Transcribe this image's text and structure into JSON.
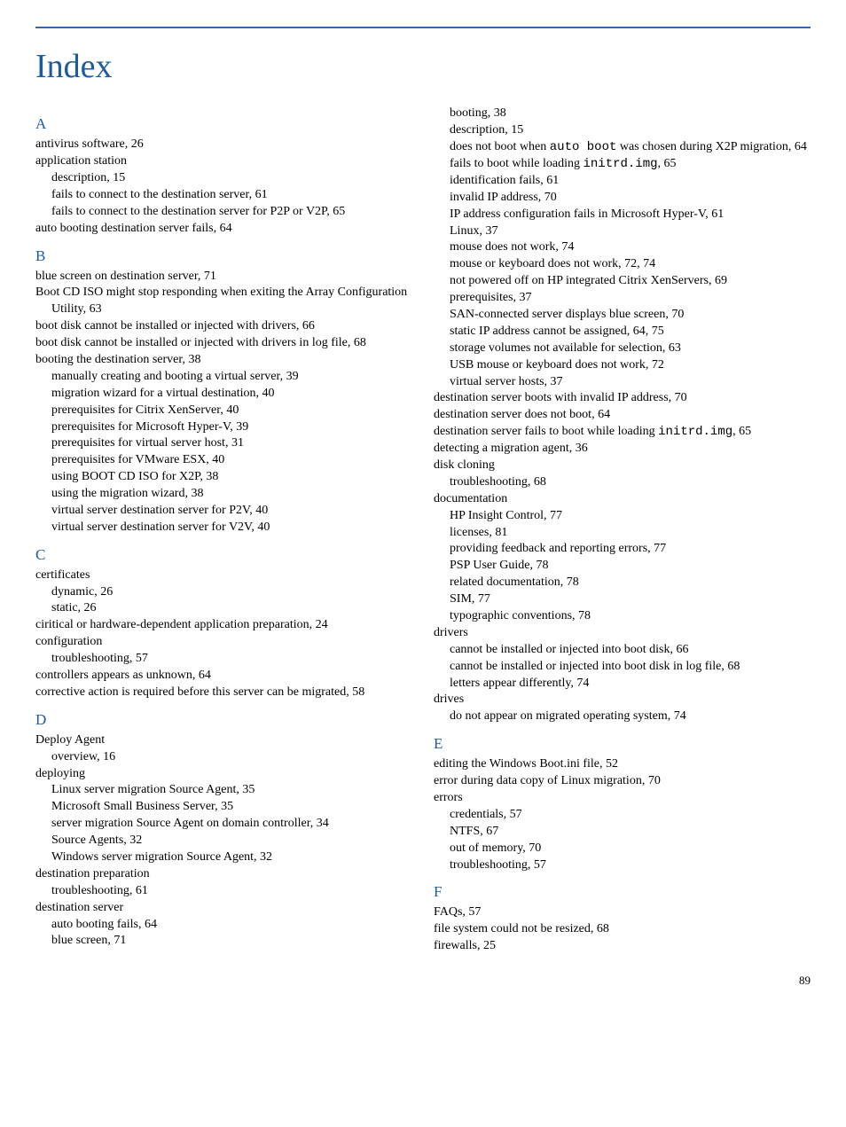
{
  "title": "Index",
  "pageNumber": "89",
  "colors": {
    "heading": "#1e5a9e",
    "rule": "#3366aa",
    "text": "#000000",
    "background": "#ffffff"
  },
  "sections": [
    {
      "letter": "A",
      "entries": [
        {
          "level": 0,
          "text": "antivirus software, 26"
        },
        {
          "level": 0,
          "text": "application station"
        },
        {
          "level": 1,
          "text": "description, 15"
        },
        {
          "level": 1,
          "text": "fails to connect to the destination server, 61"
        },
        {
          "level": 1,
          "wrap": 2,
          "text": "fails to connect to the destination server for P2P or V2P, 65"
        },
        {
          "level": 0,
          "text": "auto booting destination server fails, 64"
        }
      ]
    },
    {
      "letter": "B",
      "entries": [
        {
          "level": 0,
          "text": "blue screen on destination server, 71"
        },
        {
          "level": 0,
          "wrap": 1,
          "text": "Boot CD ISO might stop responding when exiting the Array Configuration Utility, 63"
        },
        {
          "level": 0,
          "text": "boot disk cannot be installed or injected with drivers, 66"
        },
        {
          "level": 0,
          "wrap": 1,
          "text": "boot disk cannot be installed or injected with drivers in log file, 68"
        },
        {
          "level": 0,
          "text": "booting the destination server, 38"
        },
        {
          "level": 1,
          "text": "manually creating and booting a virtual server, 39"
        },
        {
          "level": 1,
          "text": "migration wizard for a virtual destination, 40"
        },
        {
          "level": 1,
          "text": "prerequisites for Citrix XenServer, 40"
        },
        {
          "level": 1,
          "text": "prerequisites for Microsoft Hyper-V, 39"
        },
        {
          "level": 1,
          "text": "prerequisites for virtual server host, 31"
        },
        {
          "level": 1,
          "text": "prerequisites for VMware ESX, 40"
        },
        {
          "level": 1,
          "text": "using BOOT CD ISO for X2P, 38"
        },
        {
          "level": 1,
          "text": "using the migration wizard, 38"
        },
        {
          "level": 1,
          "text": "virtual server destination server for P2V, 40"
        },
        {
          "level": 1,
          "text": "virtual server destination server for V2V, 40"
        }
      ]
    },
    {
      "letter": "C",
      "entries": [
        {
          "level": 0,
          "text": "certificates"
        },
        {
          "level": 1,
          "text": "dynamic, 26"
        },
        {
          "level": 1,
          "text": "static, 26"
        },
        {
          "level": 0,
          "wrap": 1,
          "text": "ciritical or hardware-dependent application preparation, 24"
        },
        {
          "level": 0,
          "text": "configuration"
        },
        {
          "level": 1,
          "text": "troubleshooting, 57"
        },
        {
          "level": 0,
          "text": "controllers appears as unknown, 64"
        },
        {
          "level": 0,
          "wrap": 1,
          "text": "corrective action is required before this server can be migrated, 58"
        }
      ]
    },
    {
      "letter": "D",
      "entries": [
        {
          "level": 0,
          "text": "Deploy Agent"
        },
        {
          "level": 1,
          "text": "overview, 16"
        },
        {
          "level": 0,
          "text": "deploying"
        },
        {
          "level": 1,
          "text": "Linux server migration Source Agent, 35"
        },
        {
          "level": 1,
          "text": "Microsoft Small Business Server, 35"
        },
        {
          "level": 1,
          "wrap": 2,
          "text": "server migration Source Agent on domain controller, 34"
        },
        {
          "level": 1,
          "text": "Source Agents, 32"
        },
        {
          "level": 1,
          "text": "Windows server migration Source Agent, 32"
        },
        {
          "level": 0,
          "text": "destination preparation"
        },
        {
          "level": 1,
          "text": "troubleshooting, 61"
        },
        {
          "level": 0,
          "text": "destination server"
        },
        {
          "level": 1,
          "text": "auto booting fails, 64"
        },
        {
          "level": 1,
          "text": "blue screen, 71"
        },
        {
          "level": 1,
          "text": "booting, 38"
        },
        {
          "level": 1,
          "text": "description, 15"
        },
        {
          "level": 1,
          "wrap": 2,
          "parts": [
            {
              "t": "does not boot when "
            },
            {
              "t": "auto boot",
              "mono": true
            },
            {
              "t": " was chosen during X2P migration, 64"
            }
          ]
        },
        {
          "level": 1,
          "parts": [
            {
              "t": "fails to boot while loading "
            },
            {
              "t": "initrd.img",
              "mono": true
            },
            {
              "t": ", 65"
            }
          ]
        },
        {
          "level": 1,
          "text": "identification fails, 61"
        },
        {
          "level": 1,
          "text": "invalid IP address, 70"
        },
        {
          "level": 1,
          "wrap": 2,
          "text": "IP address configuration fails in Microsoft Hyper-V, 61"
        },
        {
          "level": 1,
          "text": "Linux, 37"
        },
        {
          "level": 1,
          "text": "mouse does not work, 74"
        },
        {
          "level": 1,
          "text": "mouse or keyboard does not work, 72, 74"
        },
        {
          "level": 1,
          "wrap": 2,
          "text": "not powered off on HP integrated Citrix XenServers, 69"
        },
        {
          "level": 1,
          "text": "prerequisites, 37"
        },
        {
          "level": 1,
          "text": "SAN-connected server displays blue screen, 70"
        },
        {
          "level": 1,
          "text": "static IP address cannot be assigned, 64, 75"
        },
        {
          "level": 1,
          "text": "storage volumes not available for selection, 63"
        },
        {
          "level": 1,
          "text": "USB mouse or keyboard does not work, 72"
        },
        {
          "level": 1,
          "text": "virtual server hosts, 37"
        },
        {
          "level": 0,
          "text": "destination server boots with invalid IP address, 70"
        },
        {
          "level": 0,
          "text": "destination server does not boot, 64"
        },
        {
          "level": 0,
          "wrap": 1,
          "parts": [
            {
              "t": "destination server fails to boot while loading "
            },
            {
              "t": "initrd.img",
              "mono": true
            },
            {
              "t": ", 65"
            }
          ]
        },
        {
          "level": 0,
          "text": "detecting a migration agent, 36"
        },
        {
          "level": 0,
          "text": "disk cloning"
        },
        {
          "level": 1,
          "text": "troubleshooting, 68"
        },
        {
          "level": 0,
          "text": "documentation"
        },
        {
          "level": 1,
          "text": "HP Insight Control, 77"
        },
        {
          "level": 1,
          "text": "licenses, 81"
        },
        {
          "level": 1,
          "text": "providing feedback and reporting errors, 77"
        },
        {
          "level": 1,
          "text": "PSP User Guide, 78"
        },
        {
          "level": 1,
          "text": "related documentation, 78"
        },
        {
          "level": 1,
          "text": "SIM, 77"
        },
        {
          "level": 1,
          "text": "typographic conventions, 78"
        },
        {
          "level": 0,
          "text": "drivers"
        },
        {
          "level": 1,
          "text": "cannot be installed or injected into boot disk, 66"
        },
        {
          "level": 1,
          "wrap": 2,
          "text": "cannot be installed or injected into boot disk in log file, 68"
        },
        {
          "level": 1,
          "text": "letters appear differently, 74"
        },
        {
          "level": 0,
          "text": "drives"
        },
        {
          "level": 1,
          "text": "do not appear on migrated operating system, 74"
        }
      ]
    },
    {
      "letter": "E",
      "entries": [
        {
          "level": 0,
          "text": "editing the Windows Boot.ini file, 52"
        },
        {
          "level": 0,
          "text": "error during data copy of Linux migration, 70"
        },
        {
          "level": 0,
          "text": "errors"
        },
        {
          "level": 1,
          "text": "credentials, 57"
        },
        {
          "level": 1,
          "text": "NTFS, 67"
        },
        {
          "level": 1,
          "text": "out of memory, 70"
        },
        {
          "level": 1,
          "text": "troubleshooting, 57"
        }
      ]
    },
    {
      "letter": "F",
      "entries": [
        {
          "level": 0,
          "text": "FAQs, 57"
        },
        {
          "level": 0,
          "text": "file system could not be resized, 68"
        },
        {
          "level": 0,
          "text": "firewalls, 25"
        }
      ]
    }
  ]
}
